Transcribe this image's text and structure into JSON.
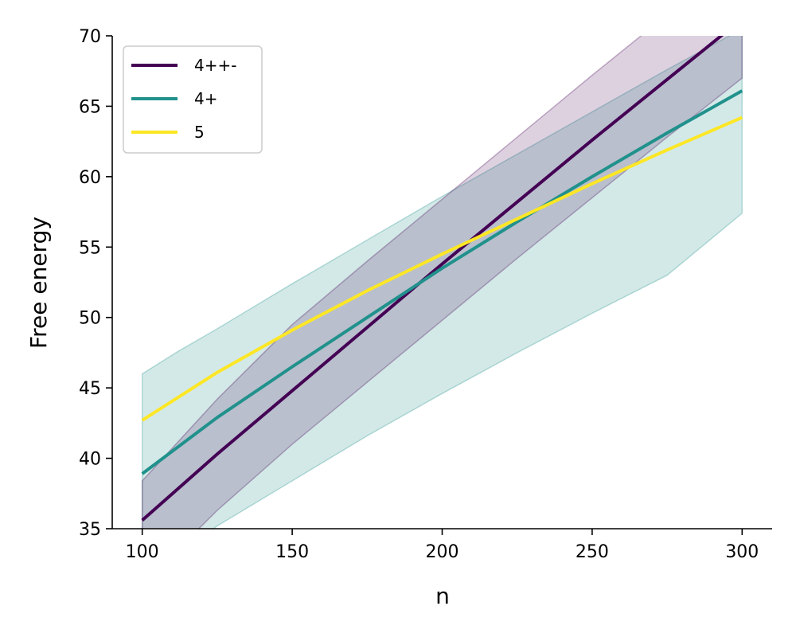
{
  "chart_data": {
    "type": "line",
    "title": "",
    "xlabel": "n",
    "ylabel": "Free energy",
    "xlim": [
      90,
      310
    ],
    "ylim": [
      35,
      70
    ],
    "xticks": [
      100,
      150,
      200,
      250,
      300
    ],
    "yticks": [
      35,
      40,
      45,
      50,
      55,
      60,
      65,
      70
    ],
    "grid": false,
    "legend_position": "top-left",
    "series": [
      {
        "name": "4++-",
        "color": "#440154",
        "x": [
          100,
          125,
          150,
          175,
          200,
          225,
          250,
          275,
          300
        ],
        "y": [
          35.6,
          40.3,
          44.8,
          49.3,
          53.8,
          58.2,
          62.6,
          66.9,
          71.2
        ]
      },
      {
        "name": "4+",
        "color": "#21918c",
        "x": [
          100,
          125,
          150,
          175,
          200,
          225,
          250,
          275,
          300
        ],
        "y": [
          38.9,
          42.9,
          46.5,
          50.0,
          53.5,
          56.8,
          60.0,
          63.1,
          66.1
        ]
      },
      {
        "name": "5",
        "color": "#fde725",
        "x": [
          100,
          125,
          150,
          175,
          200,
          225,
          250,
          275,
          300
        ],
        "y": [
          42.7,
          46.1,
          49.1,
          51.9,
          54.5,
          57.0,
          59.5,
          61.9,
          64.2
        ]
      }
    ],
    "bands": [
      {
        "series": "4+",
        "color": "#21918c",
        "opacity": 0.2,
        "x": [
          100,
          112,
          125,
          150,
          175,
          200,
          225,
          250,
          275,
          300
        ],
        "lower": [
          31.8,
          33.3,
          35.2,
          38.4,
          41.6,
          44.6,
          47.5,
          50.3,
          53.0,
          57.4
        ],
        "upper": [
          46.0,
          47.6,
          49.2,
          52.4,
          55.5,
          58.6,
          61.6,
          64.6,
          67.6,
          70.5
        ]
      },
      {
        "series": "4++-",
        "color": "#440154",
        "opacity": 0.18,
        "x": [
          100,
          125,
          150,
          175,
          200,
          225,
          250,
          275,
          300
        ],
        "lower": [
          31.0,
          36.3,
          41.0,
          45.4,
          49.8,
          54.2,
          58.5,
          62.8,
          67.0
        ],
        "upper": [
          38.4,
          44.2,
          49.5,
          54.0,
          58.4,
          62.8,
          67.2,
          71.5,
          75.6
        ]
      }
    ]
  }
}
